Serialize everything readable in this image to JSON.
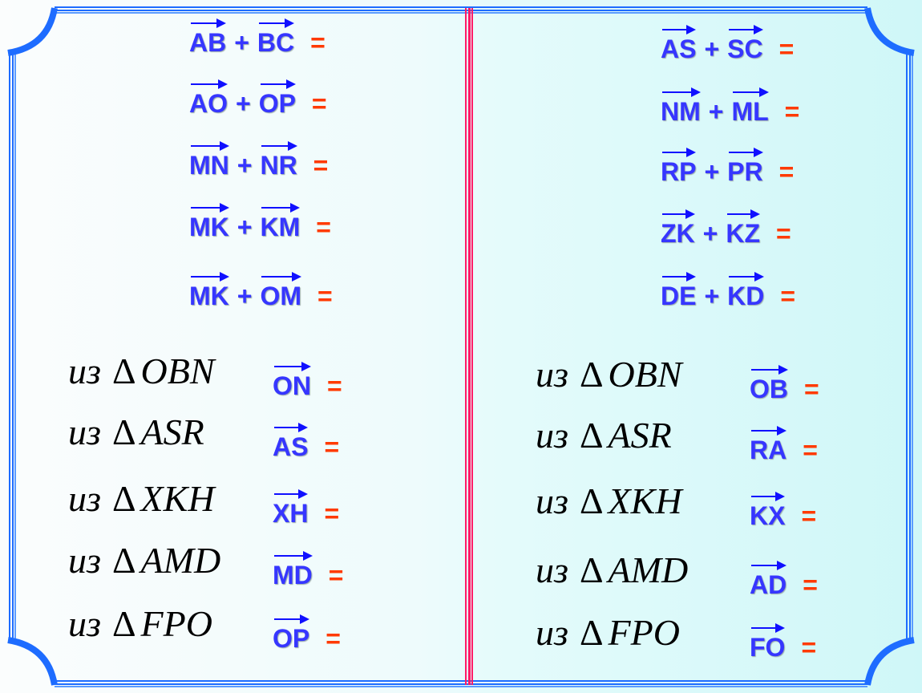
{
  "colors": {
    "vector": "#3636ff",
    "equals": "#ff3a00",
    "frame": "#1e6cff",
    "divider": "#ff1a66"
  },
  "equals": "=",
  "plus": "+",
  "delta": "Δ",
  "left_sums": [
    [
      "AB",
      "BC"
    ],
    [
      "AO",
      "OP"
    ],
    [
      "MN",
      "NR"
    ],
    [
      "MK",
      "KM"
    ],
    [
      "MK",
      "OM"
    ]
  ],
  "right_sums": [
    [
      "AS",
      "SC"
    ],
    [
      "NM",
      "ML"
    ],
    [
      "RP",
      "PR"
    ],
    [
      "ZK",
      "KZ"
    ],
    [
      "DE",
      "KD"
    ]
  ],
  "left_triangles": [
    {
      "prefix": "из",
      "tri": "OBN",
      "vec": "ON"
    },
    {
      "prefix": "из",
      "tri": "ASR",
      "vec": "AS"
    },
    {
      "prefix": "из",
      "tri": "XKH",
      "vec": "XH"
    },
    {
      "prefix": "из",
      "tri": "AMD",
      "vec": "MD"
    },
    {
      "prefix": "из",
      "tri": "FPO",
      "vec": "OP"
    }
  ],
  "right_triangles": [
    {
      "prefix": "из",
      "tri": "OBN",
      "vec": "OB"
    },
    {
      "prefix": "из",
      "tri": "ASR",
      "vec": "RA"
    },
    {
      "prefix": "из",
      "tri": "XKH",
      "vec": "KX"
    },
    {
      "prefix": "из",
      "tri": "AMD",
      "vec": "AD"
    },
    {
      "prefix": "из",
      "tri": "FPO",
      "vec": "FO"
    }
  ]
}
